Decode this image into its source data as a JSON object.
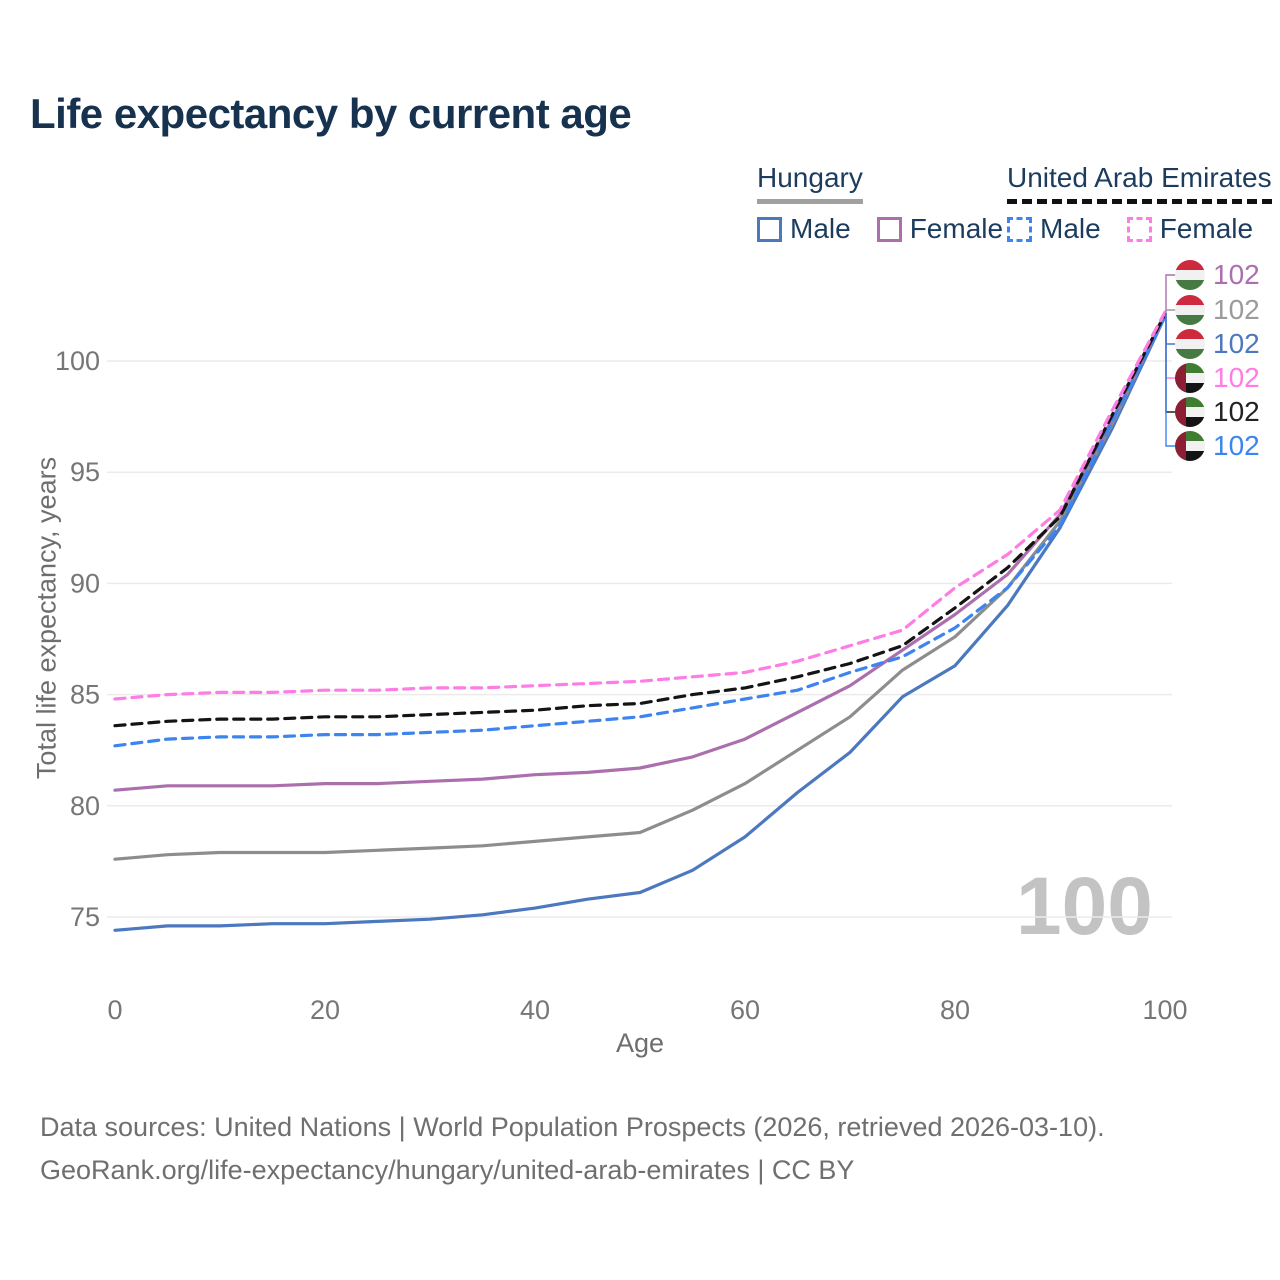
{
  "header": {
    "title": "Life expectancy by current age"
  },
  "legend": {
    "groups": [
      {
        "label": "Hungary",
        "underline_color": "#a0a0a0",
        "underline_style": "solid",
        "items": [
          {
            "label": "Male",
            "color": "#4b78bf",
            "dash": "solid"
          },
          {
            "label": "Female",
            "color": "#ab6fae",
            "dash": "solid"
          }
        ]
      },
      {
        "label": "United Arab Emirates",
        "underline_color": "#111111",
        "underline_style": "dashed",
        "items": [
          {
            "label": "Male",
            "color": "#3d84f0",
            "dash": "dashed"
          },
          {
            "label": "Female",
            "color": "#ff7ce5",
            "dash": "dashed"
          }
        ]
      }
    ]
  },
  "chart_data": {
    "type": "line",
    "title": "Life expectancy by current age",
    "xlabel": "Age",
    "ylabel": "Total life expectancy, years",
    "xlim": [
      0,
      100
    ],
    "ylim": [
      73,
      103
    ],
    "xticks": [
      0,
      20,
      40,
      60,
      80,
      100
    ],
    "yticks": [
      75,
      80,
      85,
      90,
      95,
      100
    ],
    "grid": "horizontal-only",
    "legend_position": "top-right",
    "x": [
      0,
      5,
      10,
      15,
      20,
      25,
      30,
      35,
      40,
      45,
      50,
      55,
      60,
      65,
      70,
      75,
      80,
      85,
      90,
      95,
      100
    ],
    "series": [
      {
        "name": "Hungary Male",
        "country": "Hungary",
        "sex": "male",
        "color": "#4b78bf",
        "dash": "solid",
        "values": [
          74.4,
          74.6,
          74.6,
          74.7,
          74.7,
          74.8,
          74.9,
          75.1,
          75.4,
          75.8,
          76.1,
          77.1,
          78.6,
          80.6,
          82.4,
          84.9,
          86.3,
          89.0,
          92.5,
          97.0,
          102.0
        ]
      },
      {
        "name": "Hungary Both sexes",
        "country": "Hungary",
        "sex": "both",
        "color": "#8d8d8d",
        "dash": "solid",
        "values": [
          77.6,
          77.8,
          77.9,
          77.9,
          77.9,
          78.0,
          78.1,
          78.2,
          78.4,
          78.6,
          78.8,
          79.8,
          81.0,
          82.5,
          84.0,
          86.1,
          87.6,
          89.8,
          92.8,
          97.2,
          102.1
        ]
      },
      {
        "name": "Hungary Female",
        "country": "Hungary",
        "sex": "female",
        "color": "#ab6fae",
        "dash": "solid",
        "values": [
          80.7,
          80.9,
          80.9,
          80.9,
          81.0,
          81.0,
          81.1,
          81.2,
          81.4,
          81.5,
          81.7,
          82.2,
          83.0,
          84.2,
          85.4,
          87.0,
          88.6,
          90.4,
          93.1,
          97.4,
          102.0
        ]
      },
      {
        "name": "United Arab Emirates Male",
        "country": "United Arab Emirates",
        "sex": "male",
        "color": "#3d84f0",
        "dash": "dashed",
        "values": [
          82.7,
          83.0,
          83.1,
          83.1,
          83.2,
          83.2,
          83.3,
          83.4,
          83.6,
          83.8,
          84.0,
          84.4,
          84.8,
          85.2,
          86.0,
          86.7,
          88.0,
          89.8,
          92.6,
          97.3,
          102.0
        ]
      },
      {
        "name": "United Arab Emirates Both sexes",
        "country": "United Arab Emirates",
        "sex": "both",
        "color": "#141414",
        "dash": "dashed",
        "values": [
          83.6,
          83.8,
          83.9,
          83.9,
          84.0,
          84.0,
          84.1,
          84.2,
          84.3,
          84.5,
          84.6,
          85.0,
          85.3,
          85.8,
          86.4,
          87.2,
          88.9,
          90.7,
          93.0,
          97.6,
          102.1
        ]
      },
      {
        "name": "United Arab Emirates Female",
        "country": "United Arab Emirates",
        "sex": "female",
        "color": "#ff7ce5",
        "dash": "dashed",
        "values": [
          84.8,
          85.0,
          85.1,
          85.1,
          85.2,
          85.2,
          85.3,
          85.3,
          85.4,
          85.5,
          85.6,
          85.8,
          86.0,
          86.5,
          87.2,
          87.9,
          89.8,
          91.3,
          93.3,
          97.8,
          102.2
        ]
      }
    ],
    "end_labels": [
      {
        "series": "Hungary Female",
        "flag": "hu",
        "value": "102",
        "color": "#ab6fae"
      },
      {
        "series": "Hungary Both sexes",
        "flag": "hu",
        "value": "102",
        "color": "#9b9b9b"
      },
      {
        "series": "Hungary Male",
        "flag": "hu",
        "value": "102",
        "color": "#4b78bf"
      },
      {
        "series": "United Arab Emirates Female",
        "flag": "ae",
        "value": "102",
        "color": "#ff7ce5"
      },
      {
        "series": "United Arab Emirates Both sexes",
        "flag": "ae",
        "value": "102",
        "color": "#222222"
      },
      {
        "series": "United Arab Emirates Male",
        "flag": "ae",
        "value": "102",
        "color": "#3d84f0"
      }
    ],
    "watermark": "100"
  },
  "footer": {
    "line1": "Data sources: United Nations | World Population Prospects (2026, retrieved 2026-03-10).",
    "line2": "GeoRank.org/life-expectancy/hungary/united-arab-emirates | CC BY"
  }
}
